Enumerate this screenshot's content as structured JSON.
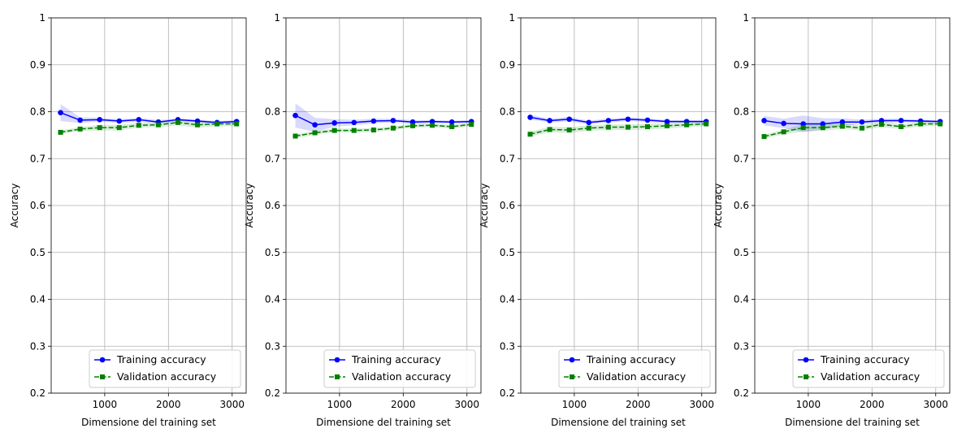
{
  "chart_data": [
    {
      "type": "line",
      "xlabel": "Dimensione del training set",
      "ylabel": "Accuracy",
      "xlim": [
        160,
        3220
      ],
      "ylim": [
        0.2,
        1.0
      ],
      "xticks": [
        1000,
        2000,
        3000
      ],
      "yticks": [
        0.2,
        0.3,
        0.4,
        0.5,
        0.6,
        0.7,
        0.8,
        0.9,
        1.0
      ],
      "grid": true,
      "legend_position": "lower right",
      "x": [
        307,
        614,
        921,
        1228,
        1535,
        1842,
        2149,
        2456,
        2763,
        3070
      ],
      "series": [
        {
          "name": "Training accuracy",
          "color": "#0000ff",
          "marker": "circle",
          "linestyle": "solid",
          "values": [
            0.798,
            0.782,
            0.783,
            0.78,
            0.783,
            0.778,
            0.783,
            0.78,
            0.777,
            0.779
          ],
          "band": [
            0.018,
            0.006,
            0.004,
            0.004,
            0.004,
            0.004,
            0.003,
            0.003,
            0.003,
            0.003
          ]
        },
        {
          "name": "Validation accuracy",
          "color": "#008000",
          "marker": "square",
          "linestyle": "dashed",
          "values": [
            0.756,
            0.763,
            0.766,
            0.766,
            0.771,
            0.772,
            0.777,
            0.772,
            0.774,
            0.774
          ],
          "band": [
            0.004,
            0.004,
            0.006,
            0.006,
            0.005,
            0.005,
            0.006,
            0.006,
            0.005,
            0.005
          ]
        }
      ]
    },
    {
      "type": "line",
      "xlabel": "Dimensione del training set",
      "ylabel": "Accuracy",
      "xlim": [
        160,
        3220
      ],
      "ylim": [
        0.2,
        1.0
      ],
      "xticks": [
        1000,
        2000,
        3000
      ],
      "yticks": [
        0.2,
        0.3,
        0.4,
        0.5,
        0.6,
        0.7,
        0.8,
        0.9,
        1.0
      ],
      "grid": true,
      "legend_position": "lower right",
      "x": [
        307,
        614,
        921,
        1228,
        1535,
        1842,
        2149,
        2456,
        2763,
        3070
      ],
      "series": [
        {
          "name": "Training accuracy",
          "color": "#0000ff",
          "marker": "circle",
          "linestyle": "solid",
          "values": [
            0.792,
            0.772,
            0.776,
            0.777,
            0.78,
            0.781,
            0.778,
            0.779,
            0.778,
            0.779
          ],
          "band": [
            0.026,
            0.015,
            0.008,
            0.006,
            0.005,
            0.004,
            0.004,
            0.003,
            0.003,
            0.003
          ]
        },
        {
          "name": "Validation accuracy",
          "color": "#008000",
          "marker": "square",
          "linestyle": "dashed",
          "values": [
            0.748,
            0.755,
            0.76,
            0.76,
            0.761,
            0.765,
            0.77,
            0.771,
            0.768,
            0.773
          ],
          "band": [
            0.004,
            0.004,
            0.004,
            0.004,
            0.004,
            0.004,
            0.004,
            0.004,
            0.004,
            0.004
          ]
        }
      ]
    },
    {
      "type": "line",
      "xlabel": "Dimensione del training set",
      "ylabel": "Accuracy",
      "xlim": [
        160,
        3220
      ],
      "ylim": [
        0.2,
        1.0
      ],
      "xticks": [
        1000,
        2000,
        3000
      ],
      "yticks": [
        0.2,
        0.3,
        0.4,
        0.5,
        0.6,
        0.7,
        0.8,
        0.9,
        1.0
      ],
      "grid": true,
      "legend_position": "lower right",
      "x": [
        307,
        614,
        921,
        1228,
        1535,
        1842,
        2149,
        2456,
        2763,
        3070
      ],
      "series": [
        {
          "name": "Training accuracy",
          "color": "#0000ff",
          "marker": "circle",
          "linestyle": "solid",
          "values": [
            0.788,
            0.781,
            0.784,
            0.777,
            0.781,
            0.784,
            0.782,
            0.779,
            0.779,
            0.779
          ],
          "band": [
            0.005,
            0.004,
            0.005,
            0.004,
            0.004,
            0.004,
            0.004,
            0.003,
            0.003,
            0.003
          ]
        },
        {
          "name": "Validation accuracy",
          "color": "#008000",
          "marker": "square",
          "linestyle": "dashed",
          "values": [
            0.752,
            0.762,
            0.761,
            0.765,
            0.767,
            0.767,
            0.768,
            0.77,
            0.772,
            0.774
          ],
          "band": [
            0.005,
            0.006,
            0.006,
            0.006,
            0.006,
            0.006,
            0.006,
            0.006,
            0.005,
            0.005
          ]
        }
      ]
    },
    {
      "type": "line",
      "xlabel": "Dimensione del training set",
      "ylabel": "Accuracy",
      "xlim": [
        160,
        3220
      ],
      "ylim": [
        0.2,
        1.0
      ],
      "xticks": [
        1000,
        2000,
        3000
      ],
      "yticks": [
        0.2,
        0.3,
        0.4,
        0.5,
        0.6,
        0.7,
        0.8,
        0.9,
        1.0
      ],
      "grid": true,
      "legend_position": "lower right",
      "x": [
        307,
        614,
        921,
        1228,
        1535,
        1842,
        2149,
        2456,
        2763,
        3070
      ],
      "series": [
        {
          "name": "Training accuracy",
          "color": "#0000ff",
          "marker": "circle",
          "linestyle": "solid",
          "values": [
            0.781,
            0.775,
            0.774,
            0.774,
            0.778,
            0.778,
            0.781,
            0.781,
            0.78,
            0.779
          ],
          "band": [
            0.01,
            0.01,
            0.018,
            0.012,
            0.008,
            0.005,
            0.004,
            0.004,
            0.003,
            0.003
          ]
        },
        {
          "name": "Validation accuracy",
          "color": "#008000",
          "marker": "square",
          "linestyle": "dashed",
          "values": [
            0.747,
            0.757,
            0.766,
            0.766,
            0.769,
            0.765,
            0.773,
            0.768,
            0.774,
            0.774
          ],
          "band": [
            0.004,
            0.005,
            0.008,
            0.007,
            0.006,
            0.005,
            0.006,
            0.005,
            0.005,
            0.004
          ]
        }
      ]
    }
  ]
}
